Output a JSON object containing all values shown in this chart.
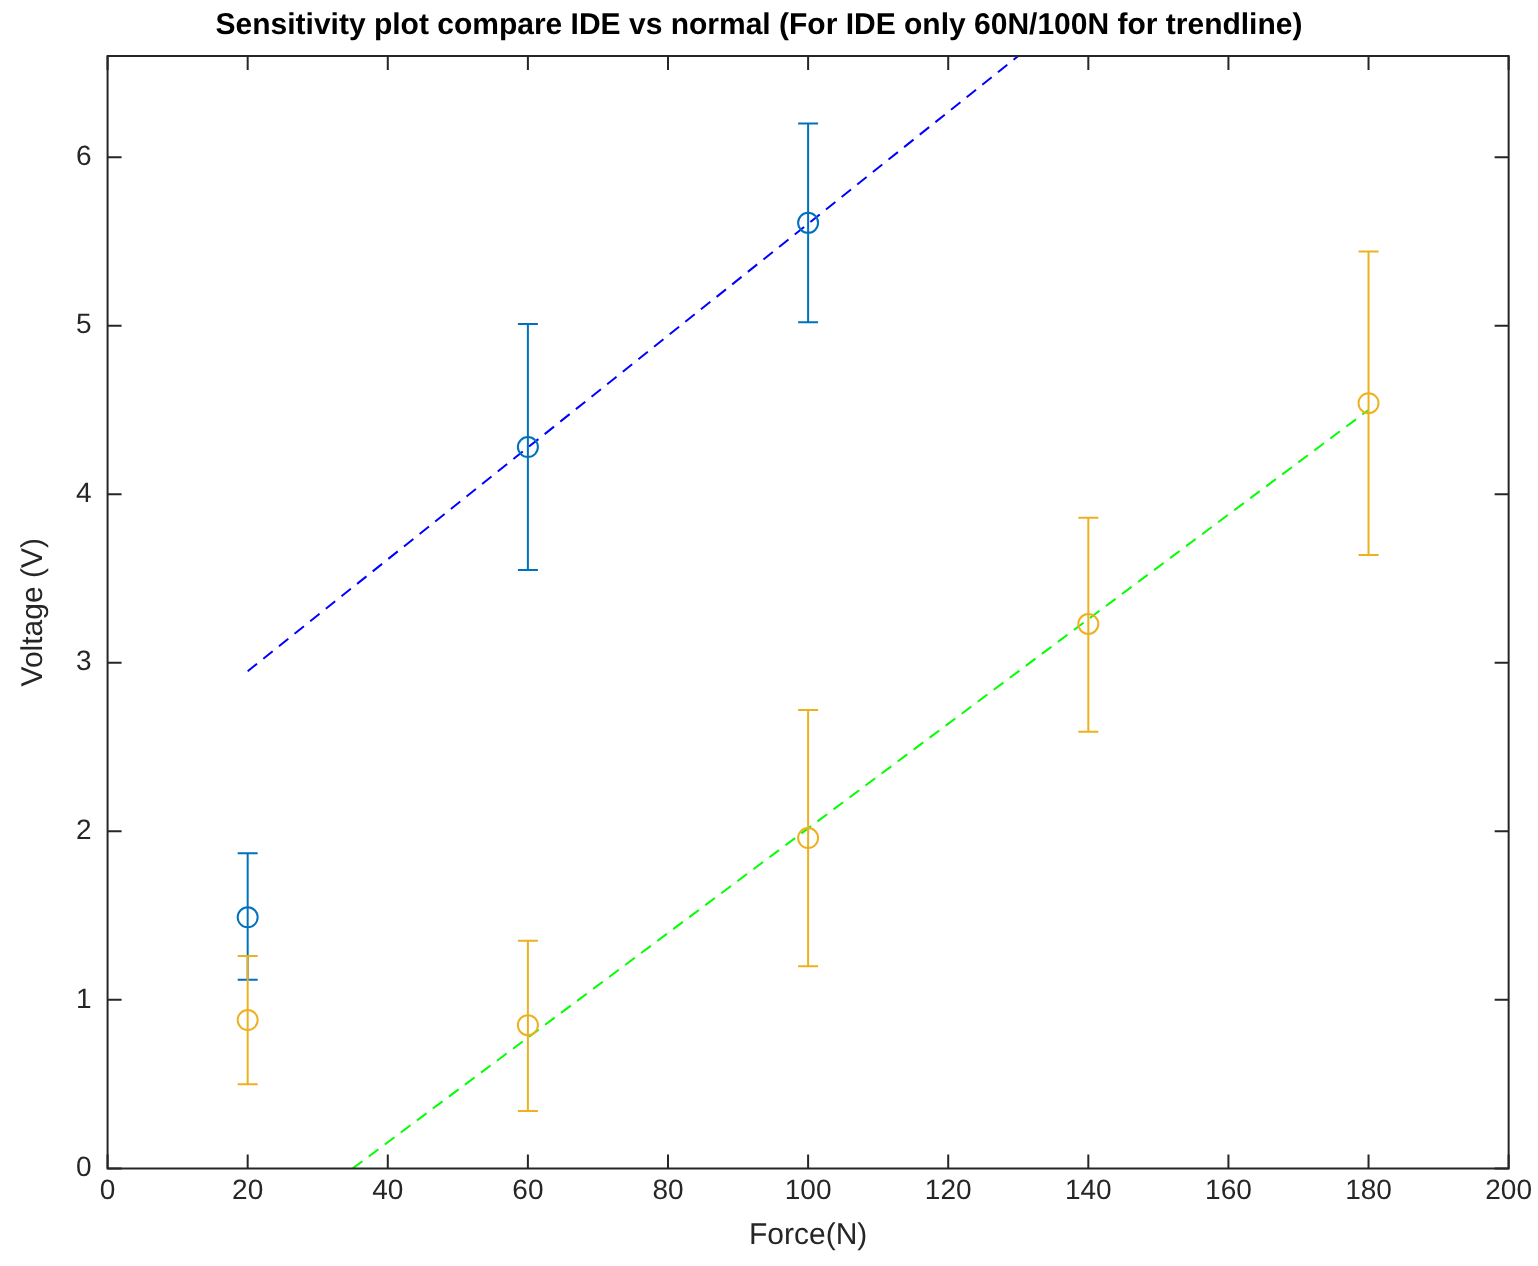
{
  "chart_data": {
    "type": "scatter",
    "title": "Sensitivity plot compare IDE vs normal (For IDE only 60N/100N for trendline)",
    "xlabel": "Force(N)",
    "ylabel": "Voltage (V)",
    "xlim": [
      0,
      200
    ],
    "xticks": [
      0,
      20,
      40,
      60,
      80,
      100,
      120,
      140,
      160,
      180,
      200
    ],
    "ylim": [
      0,
      6.6
    ],
    "yticks": [
      0,
      1,
      2,
      3,
      4,
      5,
      6
    ],
    "grid": false,
    "legend": false,
    "marker": "circle",
    "series": [
      {
        "color": "#0072bd",
        "x": [
          20,
          60,
          100
        ],
        "values": [
          1.49,
          4.28,
          5.61
        ],
        "errors": [
          [
            1.12,
            1.87
          ],
          [
            3.55,
            5.01
          ],
          [
            5.02,
            6.2
          ]
        ]
      },
      {
        "color": "#edb120",
        "x": [
          20,
          60,
          100,
          140,
          180
        ],
        "values": [
          0.88,
          0.85,
          1.96,
          3.23,
          4.54
        ],
        "errors": [
          [
            0.5,
            1.26
          ],
          [
            0.34,
            1.35
          ],
          [
            1.2,
            2.72
          ],
          [
            2.59,
            3.86
          ],
          [
            3.64,
            5.44
          ]
        ]
      },
      {
        "type": "line",
        "color": "#0000ff",
        "x": [
          20,
          130
        ],
        "values": [
          2.95,
          6.6
        ],
        "marker": "none",
        "line_style": "dashed"
      },
      {
        "type": "line",
        "color": "#00ff00",
        "x": [
          35,
          180
        ],
        "values": [
          0,
          4.5
        ],
        "marker": "none",
        "line_style": "dashed"
      }
    ]
  }
}
